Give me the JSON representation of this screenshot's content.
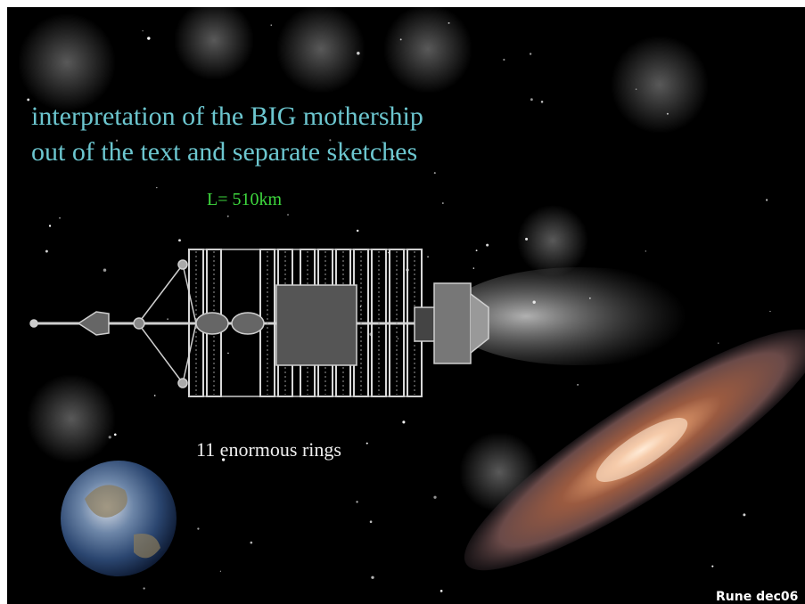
{
  "title_lines": [
    "interpretation of the BIG mothership",
    "out of the text and separate sketches"
  ],
  "length_label": "L= 510km",
  "rings_label": "11 enormous rings",
  "credit": "Rune dec06"
}
